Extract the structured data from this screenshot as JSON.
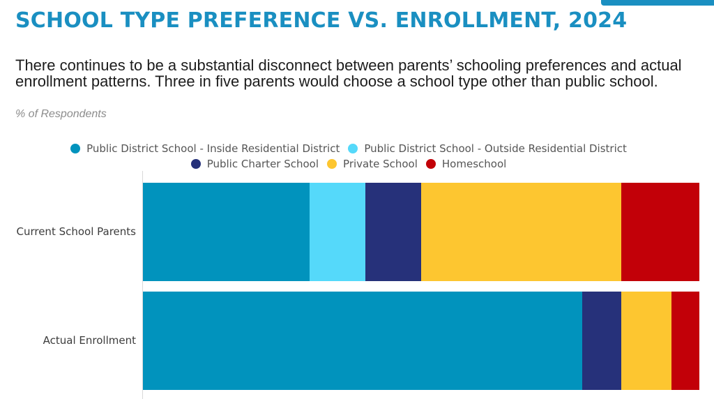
{
  "title": "SCHOOL TYPE PREFERENCE VS. ENROLLMENT, 2024",
  "subtitle": "There continues to be a substantial disconnect between parents’ schooling preferences and actual enrollment patterns. Three in five parents would choose a school type other than public school.",
  "units_label": "% of Respondents",
  "colors": {
    "accent": "#1a8fc1",
    "public_inside": "#0193bd",
    "public_outside": "#55d9fa",
    "charter": "#26317a",
    "private": "#fdc630",
    "homeschool": "#c20008"
  },
  "chart_data": {
    "type": "bar",
    "orientation": "horizontal",
    "stacked": true,
    "normalized": true,
    "categories": [
      "Current School Parents",
      "Actual Enrollment"
    ],
    "series": [
      {
        "name": "Public District School - Inside Residential District",
        "color": "#0193bd",
        "values": [
          30,
          79
        ]
      },
      {
        "name": "Public District School - Outside Residential District",
        "color": "#55d9fa",
        "values": [
          10,
          0
        ]
      },
      {
        "name": "Public Charter School",
        "color": "#26317a",
        "values": [
          10,
          7
        ]
      },
      {
        "name": "Private School",
        "color": "#fdc630",
        "values": [
          36,
          9
        ]
      },
      {
        "name": "Homeschool",
        "color": "#c20008",
        "values": [
          14,
          5
        ]
      }
    ],
    "legend": {
      "position": "top",
      "rows": [
        [
          0,
          1
        ],
        [
          2,
          3,
          4
        ]
      ]
    },
    "xlim": [
      0,
      100
    ],
    "grid": false
  }
}
